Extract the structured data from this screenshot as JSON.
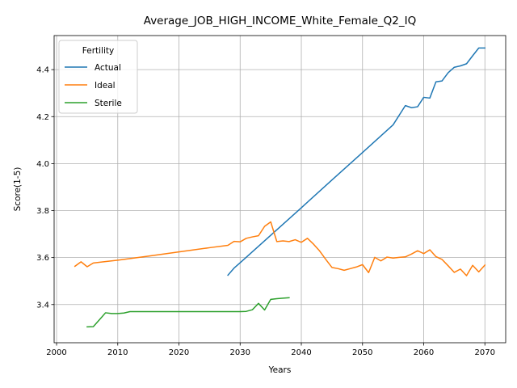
{
  "chart_data": {
    "type": "line",
    "title": "Average_JOB_HIGH_INCOME_White_Female_Q2_IQ",
    "xlabel": "Years",
    "ylabel": "Score(1-5)",
    "xlim": [
      1999.6,
      2073.4
    ],
    "ylim": [
      3.2375,
      4.545
    ],
    "xticks": [
      2000,
      2010,
      2020,
      2030,
      2040,
      2050,
      2060,
      2070
    ],
    "yticks": [
      3.4,
      3.6,
      3.8,
      4.0,
      4.2,
      4.4
    ],
    "ytick_labels": [
      "3.4",
      "3.6",
      "3.8",
      "4.0",
      "4.2",
      "4.4"
    ],
    "grid": true,
    "legend": {
      "title": "Fertility",
      "placement": "upper-left"
    },
    "series": [
      {
        "name": "Actual",
        "color": "#1f77b4",
        "x": [
          2028,
          2029,
          2030,
          2035,
          2040,
          2045,
          2050,
          2055,
          2057,
          2058,
          2059,
          2060,
          2061,
          2062,
          2063,
          2064,
          2065,
          2066,
          2067,
          2068,
          2069,
          2070
        ],
        "y": [
          3.525,
          3.555,
          3.578,
          3.695,
          3.812,
          3.93,
          4.047,
          4.165,
          4.247,
          4.238,
          4.242,
          4.282,
          4.279,
          4.348,
          4.352,
          4.387,
          4.41,
          4.416,
          4.425,
          4.459,
          4.492,
          4.492
        ]
      },
      {
        "name": "Ideal",
        "color": "#ff7f0e",
        "x": [
          2003,
          2004,
          2005,
          2006,
          2010,
          2015,
          2020,
          2025,
          2028,
          2029,
          2030,
          2031,
          2032,
          2033,
          2034,
          2035,
          2036,
          2037,
          2038,
          2039,
          2040,
          2041,
          2042,
          2043,
          2044,
          2045,
          2046,
          2047,
          2048,
          2049,
          2050,
          2051,
          2052,
          2053,
          2054,
          2055,
          2056,
          2057,
          2058,
          2059,
          2060,
          2061,
          2062,
          2063,
          2064,
          2065,
          2066,
          2067,
          2068,
          2069,
          2070
        ],
        "y": [
          3.563,
          3.582,
          3.561,
          3.577,
          3.589,
          3.606,
          3.624,
          3.642,
          3.652,
          3.669,
          3.667,
          3.682,
          3.688,
          3.693,
          3.733,
          3.752,
          3.668,
          3.671,
          3.668,
          3.676,
          3.665,
          3.682,
          3.657,
          3.628,
          3.592,
          3.558,
          3.553,
          3.546,
          3.553,
          3.56,
          3.57,
          3.536,
          3.601,
          3.586,
          3.602,
          3.598,
          3.601,
          3.603,
          3.615,
          3.629,
          3.617,
          3.633,
          3.604,
          3.592,
          3.565,
          3.537,
          3.551,
          3.523,
          3.567,
          3.539,
          3.568
        ]
      },
      {
        "name": "Sterile",
        "color": "#2ca02c",
        "x": [
          2005,
          2006,
          2007,
          2008,
          2009,
          2010,
          2011,
          2012,
          2015,
          2020,
          2025,
          2030,
          2031,
          2032,
          2033,
          2034,
          2035,
          2036,
          2037,
          2038
        ],
        "y": [
          3.305,
          3.306,
          3.335,
          3.365,
          3.362,
          3.362,
          3.364,
          3.37,
          3.37,
          3.37,
          3.37,
          3.37,
          3.371,
          3.378,
          3.405,
          3.377,
          3.422,
          3.425,
          3.427,
          3.429
        ]
      }
    ]
  }
}
